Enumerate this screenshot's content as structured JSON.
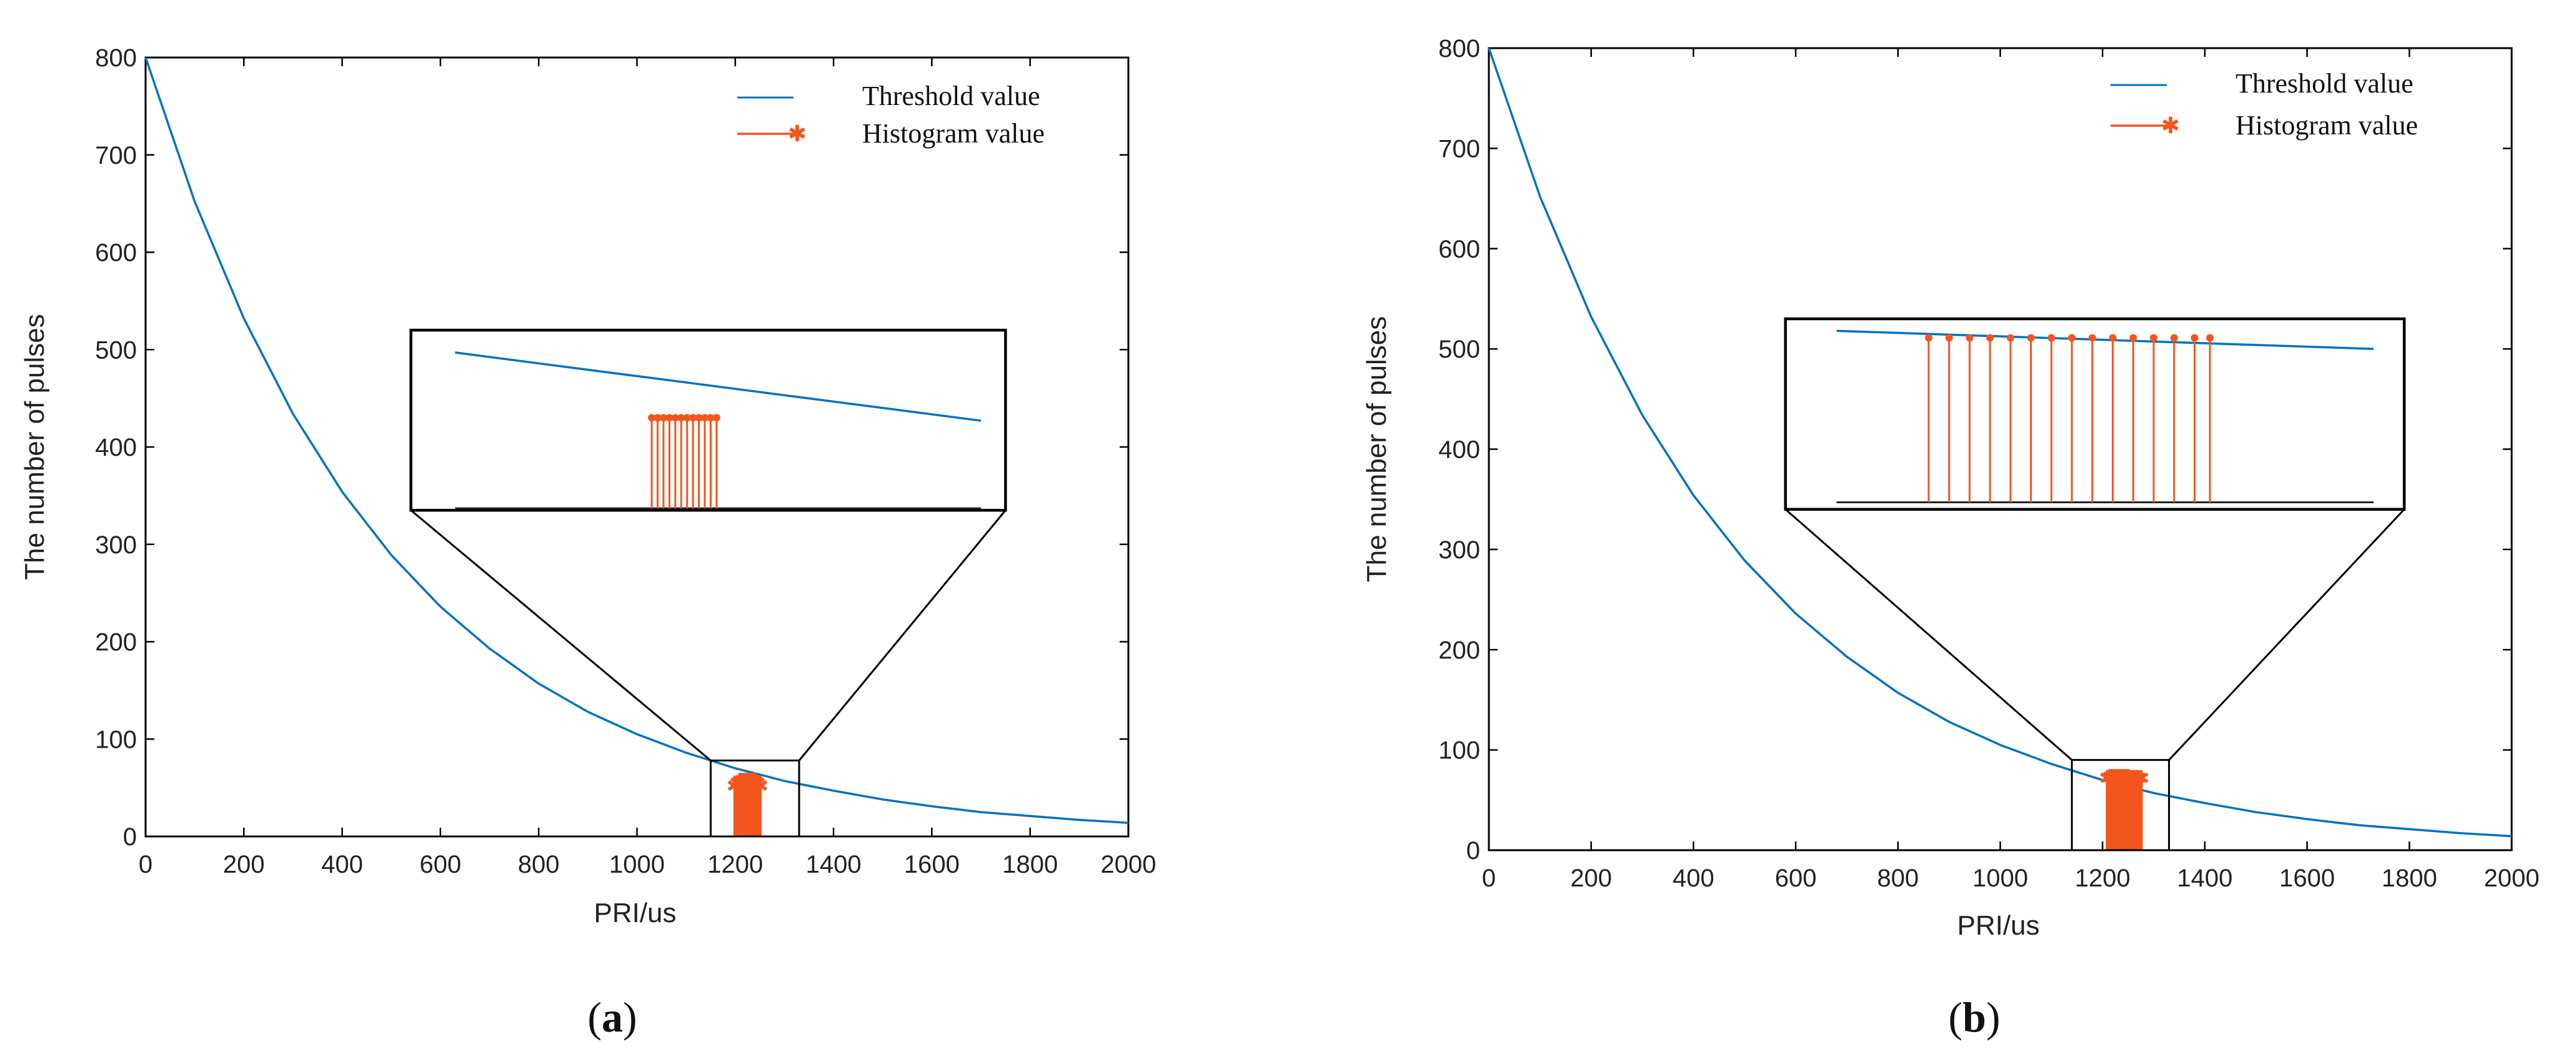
{
  "colors": {
    "threshold": "#0072bd",
    "histogram": "#f2561d",
    "axis": "#000000",
    "zoom_box": "#000000"
  },
  "chart_data": [
    {
      "type": "line+stem",
      "panel": "a",
      "caption_open": "(",
      "caption_letter": "a",
      "caption_close": ")",
      "xlabel": "PRI/us",
      "ylabel": "The number of pulses",
      "xlim": [
        0,
        2000
      ],
      "ylim": [
        0,
        800
      ],
      "xticks": [
        "0",
        "200",
        "400",
        "600",
        "800",
        "1000",
        "1200",
        "1400",
        "1600",
        "1800",
        "2000"
      ],
      "yticks": [
        "0",
        "100",
        "200",
        "300",
        "400",
        "500",
        "600",
        "700",
        "800"
      ],
      "legend_position": "top-right",
      "series": [
        {
          "name": "Threshold value",
          "kind": "line",
          "x": [
            0,
            100,
            200,
            300,
            400,
            500,
            600,
            700,
            800,
            900,
            1000,
            1100,
            1200,
            1300,
            1400,
            1500,
            1600,
            1700,
            1800,
            1900,
            2000
          ],
          "y": [
            800,
            652,
            532,
            434,
            354,
            289,
            236,
            193,
            157,
            128,
            105,
            86,
            70,
            57,
            47,
            38,
            31,
            25,
            21,
            17,
            14
          ]
        },
        {
          "name": "Histogram value",
          "kind": "stem",
          "x": [
            1200,
            1205,
            1210,
            1215,
            1220,
            1225,
            1230,
            1235,
            1240,
            1245,
            1250
          ],
          "y": [
            52,
            55,
            57,
            57,
            57,
            57,
            57,
            57,
            57,
            55,
            52
          ]
        }
      ],
      "zoom": {
        "source_x": [
          1150,
          1330
        ],
        "source_y": [
          0,
          78
        ],
        "inset_x": [
          540,
          1750
        ],
        "inset_y": [
          335,
          520
        ],
        "threshold_line": [
          [
            630,
            497
          ],
          [
            1700,
            427
          ]
        ],
        "baseline": [
          [
            630,
            337
          ],
          [
            1700,
            337
          ]
        ],
        "stem_x": [
          1030,
          1042,
          1054,
          1066,
          1078,
          1090,
          1102,
          1114,
          1126,
          1138,
          1150,
          1162
        ],
        "stem_top": 430,
        "stem_bottom": 337
      }
    },
    {
      "type": "line+stem",
      "panel": "b",
      "caption_open": "(",
      "caption_letter": "b",
      "caption_close": ")",
      "xlabel": "PRI/us",
      "ylabel": "The number of pulses",
      "xlim": [
        0,
        2000
      ],
      "ylim": [
        0,
        800
      ],
      "xticks": [
        "0",
        "200",
        "400",
        "600",
        "800",
        "1000",
        "1200",
        "1400",
        "1600",
        "1800",
        "2000"
      ],
      "yticks": [
        "0",
        "100",
        "200",
        "300",
        "400",
        "500",
        "600",
        "700",
        "800"
      ],
      "legend_position": "top-right",
      "series": [
        {
          "name": "Threshold value",
          "kind": "line",
          "x": [
            0,
            100,
            200,
            300,
            400,
            500,
            600,
            700,
            800,
            900,
            1000,
            1100,
            1200,
            1300,
            1400,
            1500,
            1600,
            1700,
            1800,
            1900,
            2000
          ],
          "y": [
            800,
            652,
            532,
            434,
            354,
            289,
            236,
            193,
            157,
            128,
            105,
            86,
            70,
            57,
            47,
            38,
            31,
            25,
            21,
            17,
            14
          ]
        },
        {
          "name": "Histogram value",
          "kind": "stem",
          "x": [
            1210,
            1215,
            1220,
            1225,
            1230,
            1235,
            1240,
            1245,
            1250,
            1255,
            1260,
            1265,
            1270,
            1275
          ],
          "y": [
            72,
            73,
            73,
            73,
            73,
            73,
            73,
            73,
            73,
            72,
            72,
            72,
            72,
            72
          ]
        }
      ],
      "zoom": {
        "source_x": [
          1140,
          1330
        ],
        "source_y": [
          0,
          90
        ],
        "inset_x": [
          580,
          1790
        ],
        "inset_y": [
          340,
          530
        ],
        "threshold_line": [
          [
            680,
            518
          ],
          [
            1730,
            500
          ]
        ],
        "baseline": [
          [
            680,
            347
          ],
          [
            1730,
            347
          ]
        ],
        "stem_x": [
          860,
          900,
          940,
          980,
          1020,
          1060,
          1100,
          1140,
          1180,
          1220,
          1260,
          1300,
          1340,
          1380,
          1410
        ],
        "stem_top": 511,
        "stem_bottom": 347
      }
    }
  ]
}
